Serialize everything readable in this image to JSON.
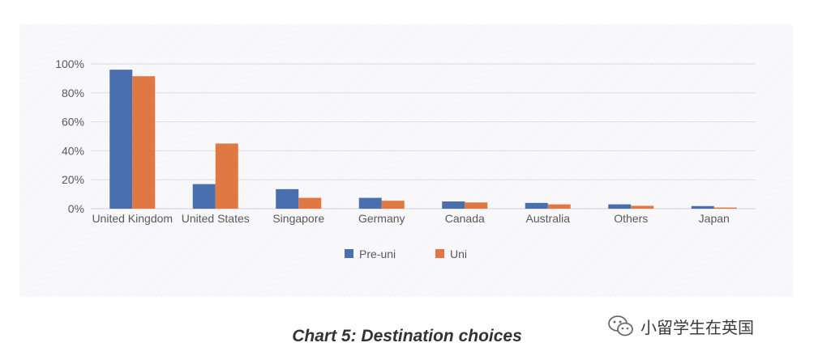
{
  "chart_data": {
    "type": "bar",
    "title": "",
    "xlabel": "",
    "ylabel": "",
    "categories": [
      "United Kingdom",
      "United States",
      "Singapore",
      "Germany",
      "Canada",
      "Australia",
      "Others",
      "Japan"
    ],
    "series": [
      {
        "name": "Pre-uni",
        "color": "#4a6fae",
        "values": [
          96,
          17,
          13.5,
          7.5,
          5,
          4,
          3,
          1.8
        ]
      },
      {
        "name": "Uni",
        "color": "#e07843",
        "values": [
          91.5,
          45,
          7.5,
          5.5,
          4.3,
          3,
          2,
          0.8
        ]
      }
    ],
    "ylim": [
      0,
      100
    ],
    "yticks": [
      "0%",
      "20%",
      "40%",
      "60%",
      "80%",
      "100%"
    ],
    "ytick_values": [
      0,
      20,
      40,
      60,
      80,
      100
    ],
    "grid": true,
    "legend_position": "bottom"
  },
  "caption": "Chart 5: Destination choices",
  "watermark": {
    "text": "小留学生在英国",
    "icon": "wechat-icon"
  }
}
